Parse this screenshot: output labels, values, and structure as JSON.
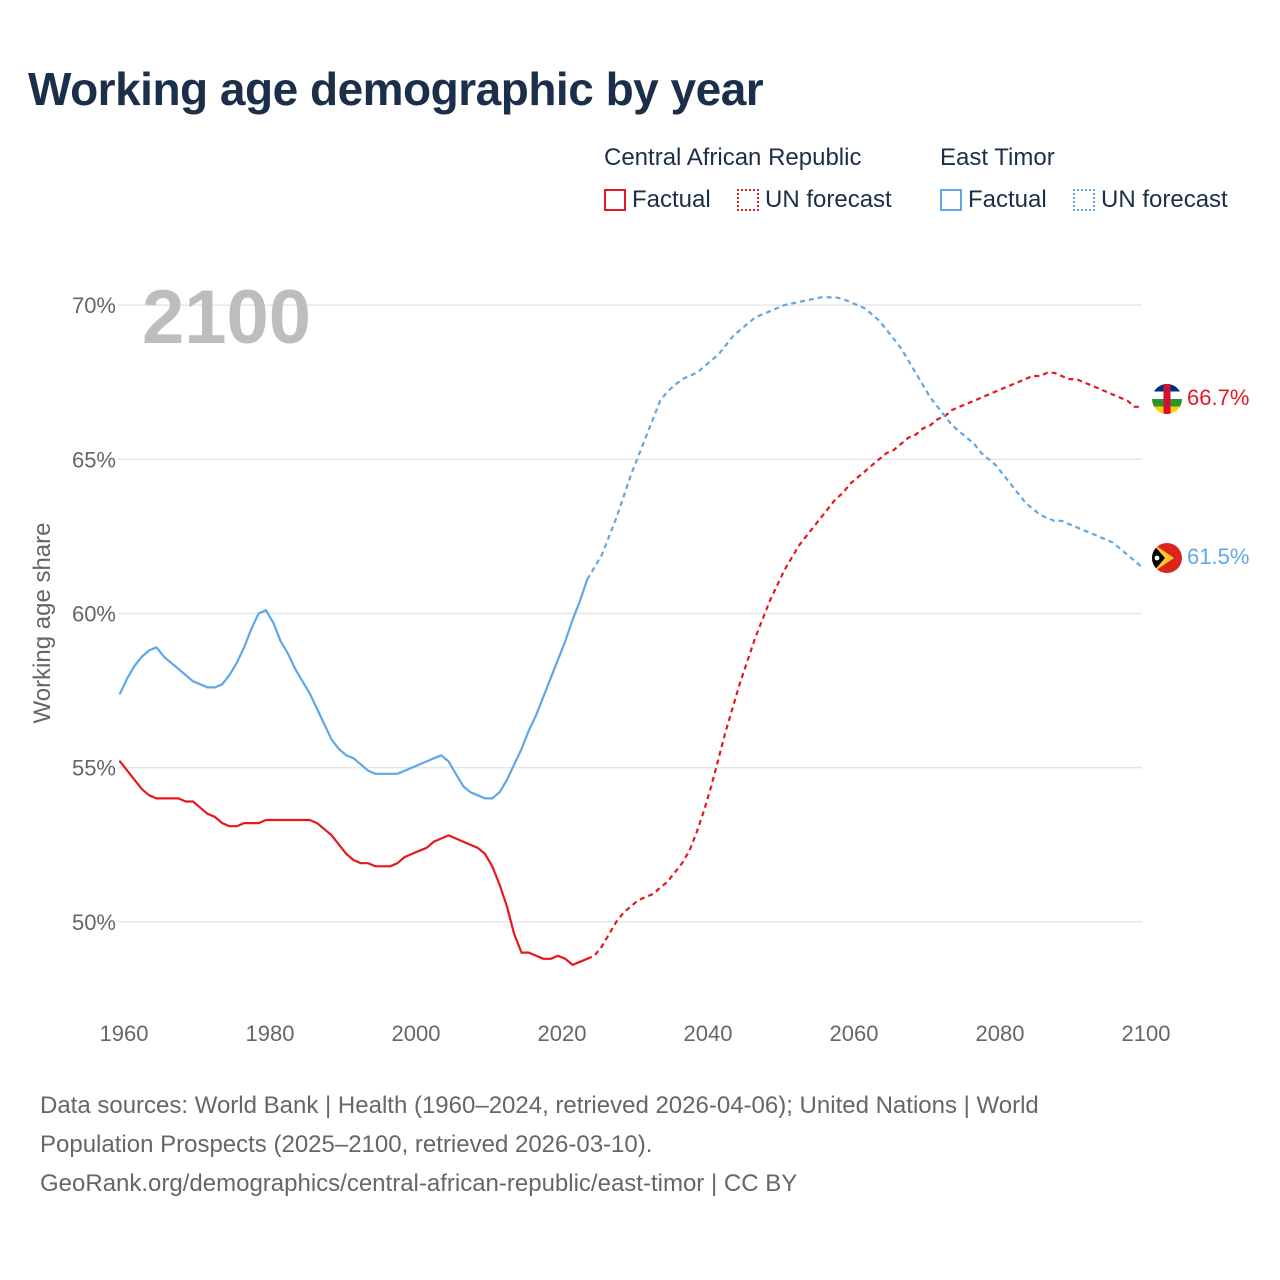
{
  "title": "Working age demographic by year",
  "legend": {
    "countries": [
      {
        "name": "Central African Republic",
        "factual_label": "Factual",
        "forecast_label": "UN forecast",
        "color": "#e8171f"
      },
      {
        "name": "East Timor",
        "factual_label": "Factual",
        "forecast_label": "UN forecast",
        "color": "#5ea8e8"
      }
    ]
  },
  "chart_data": {
    "type": "line",
    "title": "Working age demographic by year",
    "year_watermark": "2100",
    "xlabel": "",
    "ylabel": "Working age share",
    "xlim": [
      1960,
      2100
    ],
    "ylim": [
      47.3,
      71.3
    ],
    "x_ticks": [
      1960,
      1980,
      2000,
      2020,
      2040,
      2060,
      2080,
      2100
    ],
    "y_ticks": [
      {
        "value": 50,
        "label": "50%"
      },
      {
        "value": 55,
        "label": "55%"
      },
      {
        "value": 60,
        "label": "60%"
      },
      {
        "value": 65,
        "label": "65%"
      },
      {
        "value": 70,
        "label": "70%"
      }
    ],
    "grid": true,
    "factual_end_year": 2024,
    "series": [
      {
        "name": "Central African Republic",
        "color": "#e8171f",
        "end_label": "66.7%",
        "points": [
          [
            1960,
            55.2
          ],
          [
            1961,
            54.9
          ],
          [
            1962,
            54.6
          ],
          [
            1963,
            54.3
          ],
          [
            1964,
            54.1
          ],
          [
            1965,
            54.0
          ],
          [
            1966,
            54.0
          ],
          [
            1967,
            54.0
          ],
          [
            1968,
            54.0
          ],
          [
            1969,
            53.9
          ],
          [
            1970,
            53.9
          ],
          [
            1971,
            53.7
          ],
          [
            1972,
            53.5
          ],
          [
            1973,
            53.4
          ],
          [
            1974,
            53.2
          ],
          [
            1975,
            53.1
          ],
          [
            1976,
            53.1
          ],
          [
            1977,
            53.2
          ],
          [
            1978,
            53.2
          ],
          [
            1979,
            53.2
          ],
          [
            1980,
            53.3
          ],
          [
            1982,
            53.3
          ],
          [
            1984,
            53.3
          ],
          [
            1986,
            53.3
          ],
          [
            1987,
            53.2
          ],
          [
            1988,
            53.0
          ],
          [
            1989,
            52.8
          ],
          [
            1990,
            52.5
          ],
          [
            1991,
            52.2
          ],
          [
            1992,
            52.0
          ],
          [
            1993,
            51.9
          ],
          [
            1994,
            51.9
          ],
          [
            1995,
            51.8
          ],
          [
            1996,
            51.8
          ],
          [
            1997,
            51.8
          ],
          [
            1998,
            51.9
          ],
          [
            1999,
            52.1
          ],
          [
            2000,
            52.2
          ],
          [
            2001,
            52.3
          ],
          [
            2002,
            52.4
          ],
          [
            2003,
            52.6
          ],
          [
            2004,
            52.7
          ],
          [
            2005,
            52.8
          ],
          [
            2006,
            52.7
          ],
          [
            2007,
            52.6
          ],
          [
            2008,
            52.5
          ],
          [
            2009,
            52.4
          ],
          [
            2010,
            52.2
          ],
          [
            2011,
            51.8
          ],
          [
            2012,
            51.2
          ],
          [
            2013,
            50.5
          ],
          [
            2014,
            49.6
          ],
          [
            2015,
            49.0
          ],
          [
            2016,
            49.0
          ],
          [
            2017,
            48.9
          ],
          [
            2018,
            48.8
          ],
          [
            2019,
            48.8
          ],
          [
            2020,
            48.9
          ],
          [
            2021,
            48.8
          ],
          [
            2022,
            48.6
          ],
          [
            2023,
            48.7
          ],
          [
            2024,
            48.8
          ],
          [
            2025,
            48.9
          ],
          [
            2026,
            49.2
          ],
          [
            2027,
            49.6
          ],
          [
            2028,
            50.0
          ],
          [
            2029,
            50.3
          ],
          [
            2030,
            50.5
          ],
          [
            2031,
            50.7
          ],
          [
            2032,
            50.8
          ],
          [
            2033,
            50.9
          ],
          [
            2034,
            51.1
          ],
          [
            2035,
            51.3
          ],
          [
            2036,
            51.6
          ],
          [
            2037,
            51.9
          ],
          [
            2038,
            52.3
          ],
          [
            2039,
            52.9
          ],
          [
            2040,
            53.6
          ],
          [
            2041,
            54.4
          ],
          [
            2042,
            55.3
          ],
          [
            2043,
            56.2
          ],
          [
            2044,
            57.0
          ],
          [
            2045,
            57.8
          ],
          [
            2046,
            58.5
          ],
          [
            2047,
            59.2
          ],
          [
            2048,
            59.8
          ],
          [
            2049,
            60.4
          ],
          [
            2050,
            60.9
          ],
          [
            2051,
            61.4
          ],
          [
            2052,
            61.8
          ],
          [
            2053,
            62.2
          ],
          [
            2054,
            62.5
          ],
          [
            2055,
            62.8
          ],
          [
            2056,
            63.1
          ],
          [
            2057,
            63.4
          ],
          [
            2058,
            63.7
          ],
          [
            2059,
            63.9
          ],
          [
            2060,
            64.2
          ],
          [
            2061,
            64.4
          ],
          [
            2062,
            64.6
          ],
          [
            2063,
            64.8
          ],
          [
            2064,
            65.0
          ],
          [
            2065,
            65.2
          ],
          [
            2066,
            65.3
          ],
          [
            2067,
            65.5
          ],
          [
            2068,
            65.7
          ],
          [
            2069,
            65.8
          ],
          [
            2070,
            66.0
          ],
          [
            2071,
            66.1
          ],
          [
            2072,
            66.3
          ],
          [
            2073,
            66.4
          ],
          [
            2074,
            66.6
          ],
          [
            2075,
            66.7
          ],
          [
            2076,
            66.8
          ],
          [
            2077,
            66.9
          ],
          [
            2078,
            67.0
          ],
          [
            2079,
            67.1
          ],
          [
            2080,
            67.2
          ],
          [
            2081,
            67.3
          ],
          [
            2082,
            67.4
          ],
          [
            2083,
            67.5
          ],
          [
            2084,
            67.6
          ],
          [
            2085,
            67.7
          ],
          [
            2086,
            67.7
          ],
          [
            2087,
            67.8
          ],
          [
            2088,
            67.8
          ],
          [
            2089,
            67.7
          ],
          [
            2090,
            67.6
          ],
          [
            2091,
            67.6
          ],
          [
            2092,
            67.5
          ],
          [
            2093,
            67.4
          ],
          [
            2094,
            67.3
          ],
          [
            2095,
            67.2
          ],
          [
            2096,
            67.1
          ],
          [
            2097,
            67.0
          ],
          [
            2098,
            66.9
          ],
          [
            2099,
            66.7
          ],
          [
            2100,
            66.7
          ]
        ]
      },
      {
        "name": "East Timor",
        "color": "#5ea8e8",
        "end_label": "61.5%",
        "points": [
          [
            1960,
            57.4
          ],
          [
            1961,
            57.9
          ],
          [
            1962,
            58.3
          ],
          [
            1963,
            58.6
          ],
          [
            1964,
            58.8
          ],
          [
            1965,
            58.9
          ],
          [
            1966,
            58.6
          ],
          [
            1967,
            58.4
          ],
          [
            1968,
            58.2
          ],
          [
            1969,
            58.0
          ],
          [
            1970,
            57.8
          ],
          [
            1971,
            57.7
          ],
          [
            1972,
            57.6
          ],
          [
            1973,
            57.6
          ],
          [
            1974,
            57.7
          ],
          [
            1975,
            58.0
          ],
          [
            1976,
            58.4
          ],
          [
            1977,
            58.9
          ],
          [
            1978,
            59.5
          ],
          [
            1979,
            60.0
          ],
          [
            1980,
            60.1
          ],
          [
            1981,
            59.7
          ],
          [
            1982,
            59.1
          ],
          [
            1983,
            58.7
          ],
          [
            1984,
            58.2
          ],
          [
            1985,
            57.8
          ],
          [
            1986,
            57.4
          ],
          [
            1987,
            56.9
          ],
          [
            1988,
            56.4
          ],
          [
            1989,
            55.9
          ],
          [
            1990,
            55.6
          ],
          [
            1991,
            55.4
          ],
          [
            1992,
            55.3
          ],
          [
            1993,
            55.1
          ],
          [
            1994,
            54.9
          ],
          [
            1995,
            54.8
          ],
          [
            1996,
            54.8
          ],
          [
            1997,
            54.8
          ],
          [
            1998,
            54.8
          ],
          [
            1999,
            54.9
          ],
          [
            2000,
            55.0
          ],
          [
            2001,
            55.1
          ],
          [
            2002,
            55.2
          ],
          [
            2003,
            55.3
          ],
          [
            2004,
            55.4
          ],
          [
            2005,
            55.2
          ],
          [
            2006,
            54.8
          ],
          [
            2007,
            54.4
          ],
          [
            2008,
            54.2
          ],
          [
            2009,
            54.1
          ],
          [
            2010,
            54.0
          ],
          [
            2011,
            54.0
          ],
          [
            2012,
            54.2
          ],
          [
            2013,
            54.6
          ],
          [
            2014,
            55.1
          ],
          [
            2015,
            55.6
          ],
          [
            2016,
            56.2
          ],
          [
            2017,
            56.7
          ],
          [
            2018,
            57.3
          ],
          [
            2019,
            57.9
          ],
          [
            2020,
            58.5
          ],
          [
            2021,
            59.1
          ],
          [
            2022,
            59.8
          ],
          [
            2023,
            60.4
          ],
          [
            2024,
            61.1
          ],
          [
            2025,
            61.5
          ],
          [
            2026,
            61.9
          ],
          [
            2027,
            62.5
          ],
          [
            2028,
            63.1
          ],
          [
            2029,
            63.8
          ],
          [
            2030,
            64.5
          ],
          [
            2031,
            65.1
          ],
          [
            2032,
            65.7
          ],
          [
            2033,
            66.3
          ],
          [
            2034,
            66.9
          ],
          [
            2035,
            67.2
          ],
          [
            2036,
            67.4
          ],
          [
            2037,
            67.6
          ],
          [
            2038,
            67.7
          ],
          [
            2039,
            67.8
          ],
          [
            2040,
            68.0
          ],
          [
            2041,
            68.2
          ],
          [
            2042,
            68.4
          ],
          [
            2043,
            68.7
          ],
          [
            2044,
            69.0
          ],
          [
            2045,
            69.2
          ],
          [
            2046,
            69.4
          ],
          [
            2047,
            69.6
          ],
          [
            2048,
            69.7
          ],
          [
            2049,
            69.8
          ],
          [
            2050,
            69.9
          ],
          [
            2051,
            70.0
          ],
          [
            2052,
            70.05
          ],
          [
            2053,
            70.1
          ],
          [
            2054,
            70.15
          ],
          [
            2055,
            70.2
          ],
          [
            2056,
            70.25
          ],
          [
            2057,
            70.25
          ],
          [
            2058,
            70.25
          ],
          [
            2059,
            70.2
          ],
          [
            2060,
            70.1
          ],
          [
            2061,
            70.0
          ],
          [
            2062,
            69.9
          ],
          [
            2063,
            69.7
          ],
          [
            2064,
            69.5
          ],
          [
            2065,
            69.2
          ],
          [
            2066,
            68.9
          ],
          [
            2067,
            68.6
          ],
          [
            2068,
            68.2
          ],
          [
            2069,
            67.8
          ],
          [
            2070,
            67.4
          ],
          [
            2071,
            67.0
          ],
          [
            2072,
            66.7
          ],
          [
            2073,
            66.4
          ],
          [
            2074,
            66.1
          ],
          [
            2075,
            65.9
          ],
          [
            2076,
            65.7
          ],
          [
            2077,
            65.5
          ],
          [
            2078,
            65.2
          ],
          [
            2079,
            65.0
          ],
          [
            2080,
            64.8
          ],
          [
            2081,
            64.5
          ],
          [
            2082,
            64.2
          ],
          [
            2083,
            63.9
          ],
          [
            2084,
            63.6
          ],
          [
            2085,
            63.4
          ],
          [
            2086,
            63.2
          ],
          [
            2087,
            63.1
          ],
          [
            2088,
            63.0
          ],
          [
            2089,
            63.0
          ],
          [
            2090,
            62.9
          ],
          [
            2091,
            62.8
          ],
          [
            2092,
            62.7
          ],
          [
            2093,
            62.6
          ],
          [
            2094,
            62.5
          ],
          [
            2095,
            62.4
          ],
          [
            2096,
            62.3
          ],
          [
            2097,
            62.1
          ],
          [
            2098,
            61.9
          ],
          [
            2099,
            61.7
          ],
          [
            2100,
            61.5
          ]
        ]
      }
    ]
  },
  "footer": {
    "line1": "Data sources: World Bank | Health (1960–2024, retrieved 2026-04-06); United Nations | World",
    "line2": "Population Prospects (2025–2100, retrieved 2026-03-10).",
    "line3": "GeoRank.org/demographics/central-african-republic/east-timor | CC BY"
  }
}
